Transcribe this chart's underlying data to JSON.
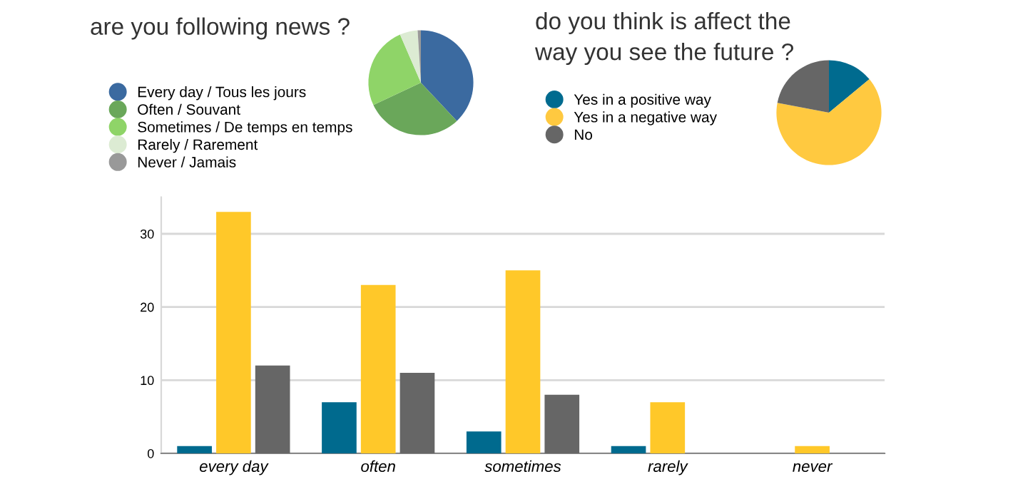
{
  "chart_data": [
    {
      "type": "pie",
      "title": "are you following news ?",
      "categories": [
        "Every day / Tous les jours",
        "Often / Souvant",
        "Sometimes / De temps en temps",
        "Rarely / Rarement",
        "Never / Jamais"
      ],
      "values": [
        38,
        30,
        25.5,
        5.5,
        1
      ],
      "colors": [
        "#3b6aa0",
        "#6aa75a",
        "#8fd468",
        "#dcebd3",
        "#999999"
      ],
      "legend": "left"
    },
    {
      "type": "pie",
      "title": "do you think is affect the\nway you see the future ?",
      "categories": [
        "Yes in a positive way",
        "Yes in a negative way",
        "No"
      ],
      "values": [
        14,
        64,
        22
      ],
      "colors": [
        "#006b8f",
        "#ffc940",
        "#666666"
      ],
      "legend": "left"
    },
    {
      "type": "bar",
      "categories": [
        "every day",
        "often",
        "sometimes",
        "rarely",
        "never"
      ],
      "ylim": [
        0,
        35
      ],
      "yticks": [
        0,
        10,
        20,
        30
      ],
      "grid": "y",
      "legend": false,
      "series": [
        {
          "color": "#006a8e",
          "values": [
            1,
            7,
            3,
            1,
            0
          ]
        },
        {
          "color": "#ffc829",
          "values": [
            33,
            23,
            25,
            7,
            1
          ]
        },
        {
          "color": "#666666",
          "values": [
            12,
            11,
            8,
            0,
            0
          ]
        }
      ]
    }
  ]
}
